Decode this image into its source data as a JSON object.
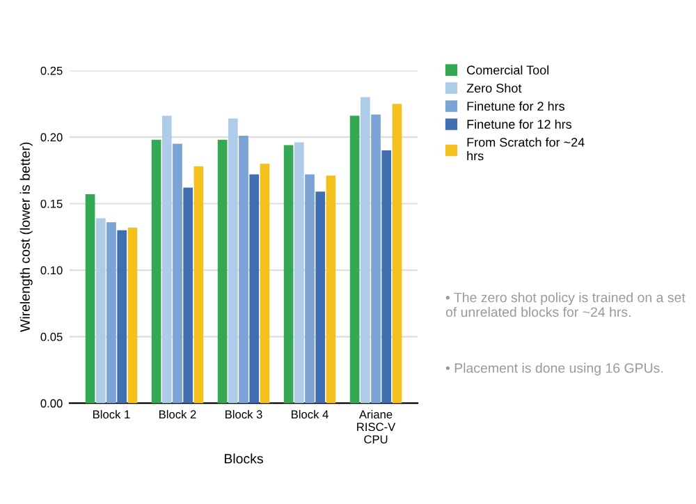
{
  "chart_data": {
    "type": "bar",
    "xlabel": "Blocks",
    "ylabel": "Wirelength cost (lower is better)",
    "categories": [
      "Block 1",
      "Block 2",
      "Block 3",
      "Block 4",
      "Ariane\nRISC-V\nCPU"
    ],
    "series": [
      {
        "name": "Comercial Tool",
        "color": "#34a853",
        "values": [
          0.157,
          0.198,
          0.198,
          0.194,
          0.216
        ]
      },
      {
        "name": "Zero Shot",
        "color": "#aecbe8",
        "values": [
          0.139,
          0.216,
          0.214,
          0.196,
          0.23
        ]
      },
      {
        "name": "Finetune for 2 hrs",
        "color": "#7ba3d6",
        "values": [
          0.136,
          0.195,
          0.201,
          0.172,
          0.217
        ]
      },
      {
        "name": "Finetune for 12 hrs",
        "color": "#3f6fb0",
        "values": [
          0.13,
          0.162,
          0.172,
          0.159,
          0.19
        ]
      },
      {
        "name": "From Scratch for ~24\nhrs",
        "color": "#f4c01e",
        "values": [
          0.132,
          0.178,
          0.18,
          0.171,
          0.225
        ]
      }
    ],
    "ylim": [
      0,
      0.25
    ],
    "yticks": [
      {
        "value": 0,
        "label": "0.00"
      },
      {
        "value": 0.05,
        "label": "0.05"
      },
      {
        "value": 0.1,
        "label": "0.10"
      },
      {
        "value": 0.15,
        "label": "0.15"
      },
      {
        "value": 0.2,
        "label": "0.20"
      },
      {
        "value": 0.25,
        "label": "0.25"
      }
    ],
    "grid": "y",
    "legend": "right",
    "annotations": [
      "• The zero shot policy is trained on a set of unrelated blocks for ~24 hrs.",
      "• Placement is done using 16 GPUs."
    ]
  }
}
